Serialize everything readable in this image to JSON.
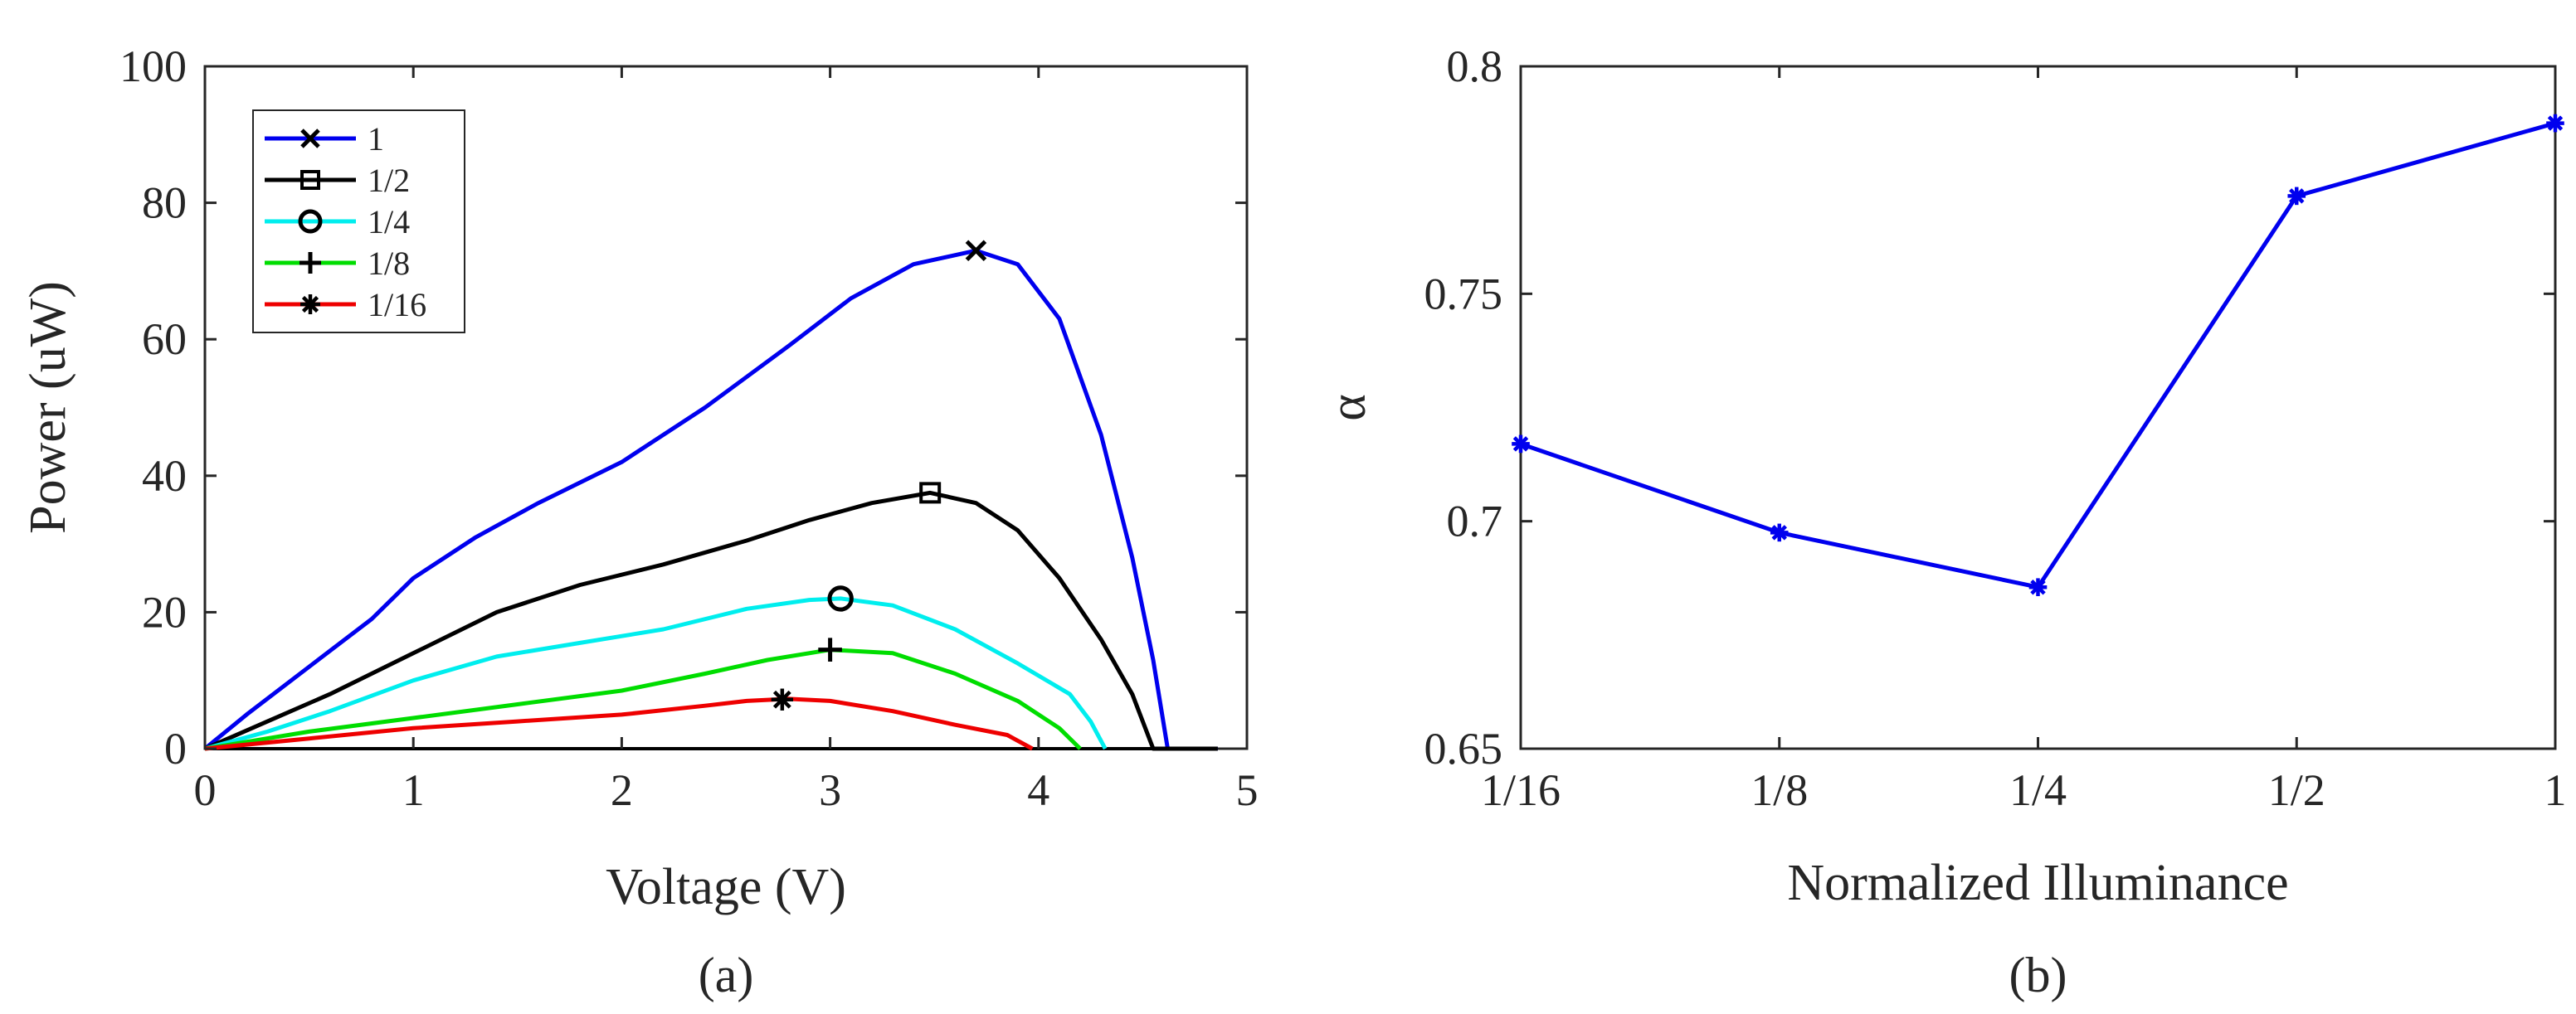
{
  "chart_data": [
    {
      "panel": "(a)",
      "type": "line",
      "title": "",
      "xlabel": "Voltage (V)",
      "ylabel": "Power (uW)",
      "xlim": [
        0,
        5
      ],
      "ylim": [
        0,
        100
      ],
      "xticks": [
        0,
        1,
        2,
        3,
        4,
        5
      ],
      "yticks": [
        0,
        20,
        40,
        60,
        80,
        100
      ],
      "grid": false,
      "legend_location": "top-left",
      "series": [
        {
          "name": "1",
          "color": "#0000ee",
          "marker": "x",
          "mpp": [
            3.7,
            73
          ],
          "x": [
            0,
            0.2,
            0.5,
            0.8,
            1.0,
            1.3,
            1.6,
            2.0,
            2.4,
            2.8,
            3.1,
            3.4,
            3.7,
            3.9,
            4.1,
            4.3,
            4.45,
            4.55,
            4.62,
            4.86
          ],
          "y": [
            0,
            5,
            12,
            19,
            25,
            31,
            36,
            42,
            50,
            59,
            66,
            71,
            73,
            71,
            63,
            46,
            28,
            13,
            0,
            0
          ]
        },
        {
          "name": "1/2",
          "color": "#000000",
          "marker": "s",
          "mpp": [
            3.48,
            37.5
          ],
          "x": [
            0,
            0.3,
            0.6,
            1.0,
            1.4,
            1.8,
            2.2,
            2.6,
            2.9,
            3.2,
            3.48,
            3.7,
            3.9,
            4.1,
            4.3,
            4.45,
            4.55,
            4.86
          ],
          "y": [
            0,
            4,
            8,
            14,
            20,
            24,
            27,
            30.5,
            33.5,
            36,
            37.5,
            36,
            32,
            25,
            16,
            8,
            0,
            0
          ]
        },
        {
          "name": "1/4",
          "color": "#00eeee",
          "marker": "o",
          "mpp": [
            3.05,
            22
          ],
          "x": [
            0,
            0.3,
            0.6,
            1.0,
            1.4,
            1.8,
            2.2,
            2.6,
            2.9,
            3.05,
            3.3,
            3.6,
            3.9,
            4.15,
            4.25,
            4.32
          ],
          "y": [
            0,
            2.5,
            5.5,
            10,
            13.5,
            15.5,
            17.5,
            20.5,
            21.8,
            22,
            21,
            17.5,
            12.5,
            8,
            4,
            0
          ]
        },
        {
          "name": "1/8",
          "color": "#00dd00",
          "marker": "+",
          "mpp": [
            3.0,
            14.5
          ],
          "x": [
            0,
            0.5,
            1.0,
            1.5,
            2.0,
            2.4,
            2.7,
            3.0,
            3.3,
            3.6,
            3.9,
            4.1,
            4.2
          ],
          "y": [
            0,
            2.5,
            4.5,
            6.5,
            8.5,
            11,
            13,
            14.5,
            14,
            11,
            7,
            3,
            0
          ]
        },
        {
          "name": "1/16",
          "color": "#ee0000",
          "marker": "*",
          "mpp": [
            2.77,
            7.2
          ],
          "x": [
            0,
            0.5,
            1.0,
            1.5,
            2.0,
            2.4,
            2.6,
            2.8,
            3.0,
            3.3,
            3.6,
            3.85,
            3.97
          ],
          "y": [
            0,
            1.5,
            3,
            4,
            5,
            6.3,
            7,
            7.3,
            7,
            5.5,
            3.5,
            2,
            0
          ]
        }
      ],
      "zero_line": {
        "x": [
          0,
          4.86
        ],
        "y": [
          0,
          0
        ],
        "color": "#000000"
      }
    },
    {
      "panel": "(b)",
      "type": "line",
      "title": "",
      "xlabel": "Normalized Illuminance",
      "ylabel": "α",
      "categories": [
        "1/16",
        "1/8",
        "1/4",
        "1/2",
        "1"
      ],
      "ylim": [
        0.65,
        0.8
      ],
      "yticks": [
        "0.65",
        "0.7",
        "0.75",
        "0.8"
      ],
      "grid": false,
      "series": [
        {
          "name": "α",
          "color": "#0000ee",
          "marker": "*",
          "values": [
            0.717,
            0.6975,
            0.6855,
            0.7715,
            0.7875
          ]
        }
      ]
    }
  ]
}
